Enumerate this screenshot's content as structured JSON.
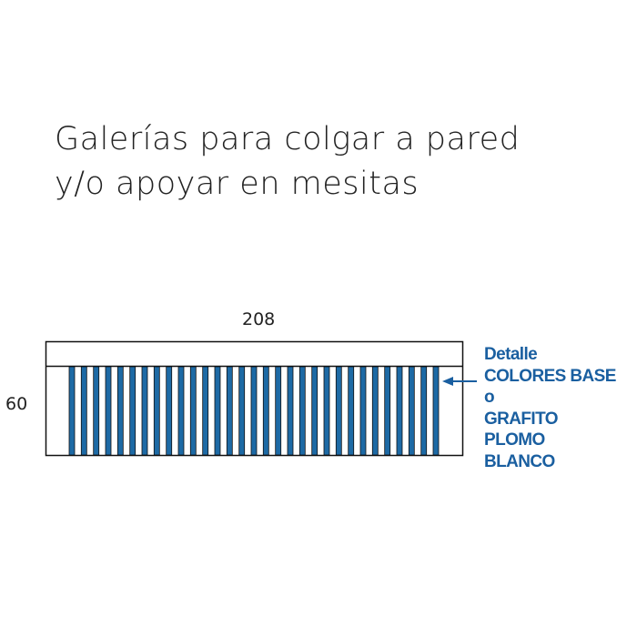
{
  "title_lines": [
    "Galerías para colgar a pared",
    "y/o apoyar en mesitas"
  ],
  "dimensions": {
    "width": "208",
    "height": "60"
  },
  "note_lines": [
    "Detalle",
    "COLORES BASE",
    "o",
    "GRAFITO",
    "PLOMO",
    "BLANCO"
  ],
  "colors": {
    "slat": "#1d6aa5",
    "note": "#1a5fa0",
    "outline": "#111111"
  }
}
